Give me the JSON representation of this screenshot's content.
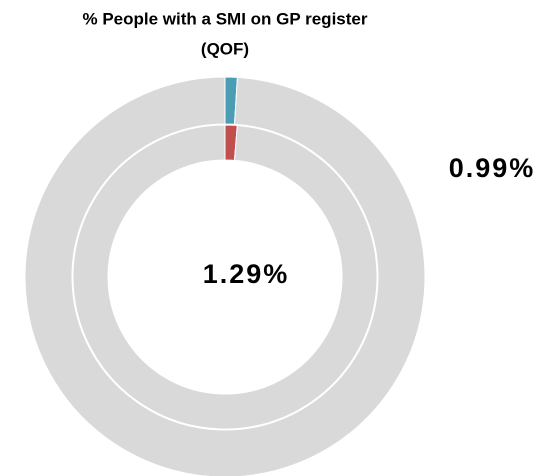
{
  "chart_data": {
    "type": "nested-donut",
    "title": [
      "% People with a SMI on GP register",
      "(QOF)"
    ],
    "total": 100,
    "rest_color": "#d9d9d9",
    "rings": [
      {
        "color": "#4a9db5",
        "value": 0.99,
        "value_label": "0.99%"
      },
      {
        "color": "#c0504d",
        "value": 1.29,
        "value_label": "1.29%"
      }
    ]
  }
}
